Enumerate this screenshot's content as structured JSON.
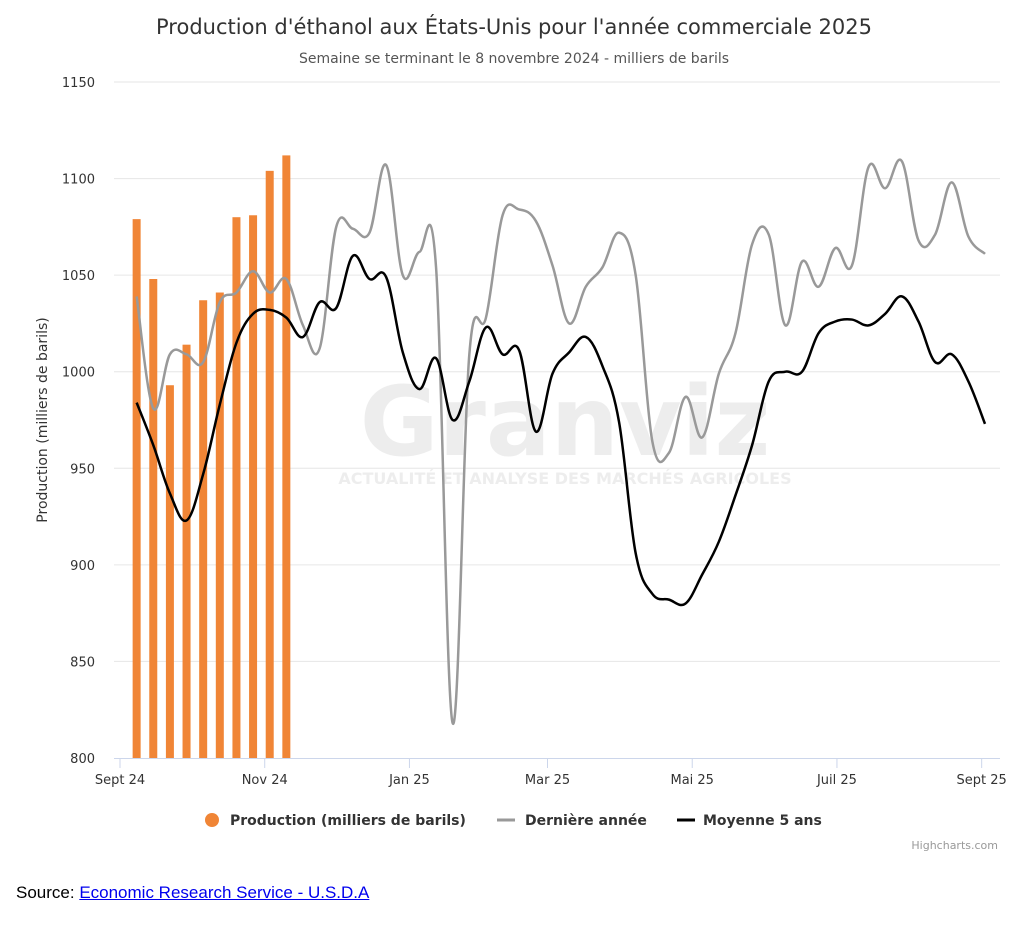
{
  "chart_data": {
    "type": "bar+line",
    "title": "Production d'éthanol aux États-Unis pour l'année commerciale 2025",
    "subtitle": "Semaine se terminant le 8 novembre 2024 - milliers de barils",
    "ylabel": "Production (milliers de barils)",
    "ylim": [
      800,
      1150
    ],
    "y_ticks": [
      800,
      850,
      900,
      950,
      1000,
      1050,
      1100,
      1150
    ],
    "x_ticks": [
      {
        "label": "Sept 24",
        "week": 0
      },
      {
        "label": "Nov 24",
        "week": 8.7
      },
      {
        "label": "Jan 25",
        "week": 17.4
      },
      {
        "label": "Mar 25",
        "week": 25.7
      },
      {
        "label": "Mai 25",
        "week": 34.4
      },
      {
        "label": "Juil 25",
        "week": 43.1
      },
      {
        "label": "Sept 25",
        "week": 51.8
      }
    ],
    "grid": true,
    "legend_position": "bottom",
    "colors": {
      "production": "#f08536",
      "last_year": "#999999",
      "avg5": "#000000"
    },
    "series": [
      {
        "name": "Production (milliers de barils)",
        "type": "bar",
        "weeks": [
          1,
          2,
          3,
          4,
          5,
          6,
          7,
          8,
          9,
          10
        ],
        "values": [
          1079,
          1048,
          993,
          1014,
          1037,
          1041,
          1080,
          1081,
          1104,
          1112
        ]
      },
      {
        "name": "Dernière année",
        "type": "line",
        "points": [
          [
            1,
            1039
          ],
          [
            2,
            981
          ],
          [
            3,
            1009
          ],
          [
            4,
            1009
          ],
          [
            5,
            1005
          ],
          [
            6,
            1036
          ],
          [
            7,
            1041
          ],
          [
            8,
            1052
          ],
          [
            9,
            1041
          ],
          [
            10,
            1048
          ],
          [
            11,
            1024
          ],
          [
            12,
            1012
          ],
          [
            13,
            1075
          ],
          [
            14,
            1074
          ],
          [
            15,
            1072
          ],
          [
            16,
            1107
          ],
          [
            17,
            1050
          ],
          [
            18,
            1062
          ],
          [
            19,
            1054
          ],
          [
            20,
            818
          ],
          [
            21,
            1009
          ],
          [
            22,
            1028
          ],
          [
            23,
            1081
          ],
          [
            24,
            1084
          ],
          [
            25,
            1078
          ],
          [
            26,
            1055
          ],
          [
            27,
            1025
          ],
          [
            28,
            1044
          ],
          [
            29,
            1054
          ],
          [
            30,
            1072
          ],
          [
            31,
            1050
          ],
          [
            32,
            964
          ],
          [
            33,
            958
          ],
          [
            34,
            987
          ],
          [
            35,
            966
          ],
          [
            36,
            999
          ],
          [
            37,
            1020
          ],
          [
            38,
            1066
          ],
          [
            39,
            1071
          ],
          [
            40,
            1024
          ],
          [
            41,
            1057
          ],
          [
            42,
            1044
          ],
          [
            43,
            1064
          ],
          [
            44,
            1055
          ],
          [
            45,
            1106
          ],
          [
            46,
            1095
          ],
          [
            47,
            1109
          ],
          [
            48,
            1068
          ],
          [
            49,
            1071
          ],
          [
            50,
            1098
          ],
          [
            51,
            1070
          ],
          [
            52,
            1061
          ]
        ]
      },
      {
        "name": "Moyenne 5 ans",
        "type": "line",
        "points": [
          [
            1,
            984
          ],
          [
            2,
            962
          ],
          [
            3,
            937
          ],
          [
            4,
            923
          ],
          [
            5,
            947
          ],
          [
            6,
            983
          ],
          [
            7,
            1015
          ],
          [
            8,
            1030
          ],
          [
            9,
            1032
          ],
          [
            10,
            1028
          ],
          [
            11,
            1018
          ],
          [
            12,
            1036
          ],
          [
            13,
            1033
          ],
          [
            14,
            1060
          ],
          [
            15,
            1048
          ],
          [
            16,
            1049
          ],
          [
            17,
            1010
          ],
          [
            18,
            991
          ],
          [
            19,
            1007
          ],
          [
            20,
            975
          ],
          [
            21,
            995
          ],
          [
            22,
            1023
          ],
          [
            23,
            1009
          ],
          [
            24,
            1011
          ],
          [
            25,
            969
          ],
          [
            26,
            999
          ],
          [
            27,
            1010
          ],
          [
            28,
            1018
          ],
          [
            29,
            1003
          ],
          [
            30,
            974
          ],
          [
            31,
            906
          ],
          [
            32,
            885
          ],
          [
            33,
            882
          ],
          [
            34,
            880
          ],
          [
            35,
            895
          ],
          [
            36,
            912
          ],
          [
            37,
            936
          ],
          [
            38,
            962
          ],
          [
            39,
            995
          ],
          [
            40,
            1000
          ],
          [
            41,
            1000
          ],
          [
            42,
            1020
          ],
          [
            43,
            1026
          ],
          [
            44,
            1027
          ],
          [
            45,
            1024
          ],
          [
            46,
            1030
          ],
          [
            47,
            1039
          ],
          [
            48,
            1026
          ],
          [
            49,
            1005
          ],
          [
            50,
            1009
          ],
          [
            51,
            995
          ],
          [
            52,
            973
          ]
        ]
      }
    ]
  },
  "watermark": {
    "brand": "Granviz",
    "tagline": "ACTUALITÉ ET ANALYSE DES MARCHÉS AGRICOLES"
  },
  "credits": "Highcharts.com",
  "source": {
    "prefix": "Source: ",
    "link_text": "Economic Research Service - U.S.D.A"
  }
}
